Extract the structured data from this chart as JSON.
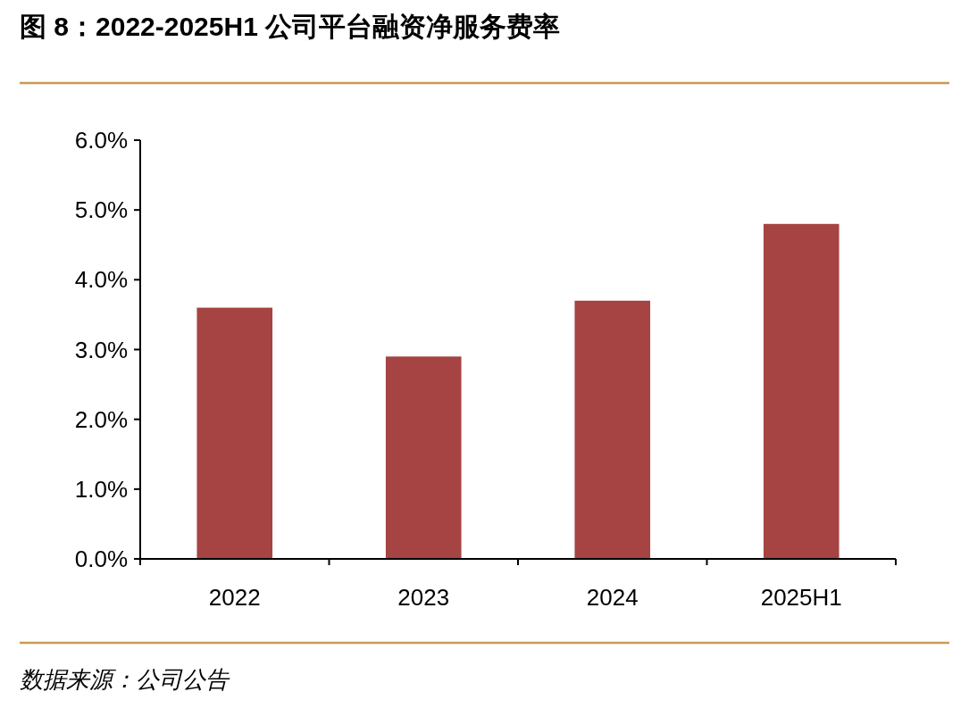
{
  "chart_data": {
    "type": "bar",
    "title": "图 8：2022-2025H1 公司平台融资净服务费率",
    "categories": [
      "2022",
      "2023",
      "2024",
      "2025H1"
    ],
    "values": [
      3.6,
      2.9,
      3.7,
      4.8
    ],
    "color": "#a54442",
    "ylim": [
      0,
      6
    ],
    "yticks": [
      {
        "value": 0,
        "label": "0.0%"
      },
      {
        "value": 1,
        "label": "1.0%"
      },
      {
        "value": 2,
        "label": "2.0%"
      },
      {
        "value": 3,
        "label": "3.0%"
      },
      {
        "value": 4,
        "label": "4.0%"
      },
      {
        "value": 5,
        "label": "5.0%"
      },
      {
        "value": 6,
        "label": "6.0%"
      }
    ],
    "grid": false,
    "annotations": [
      "数据来源：公司公告"
    ]
  }
}
